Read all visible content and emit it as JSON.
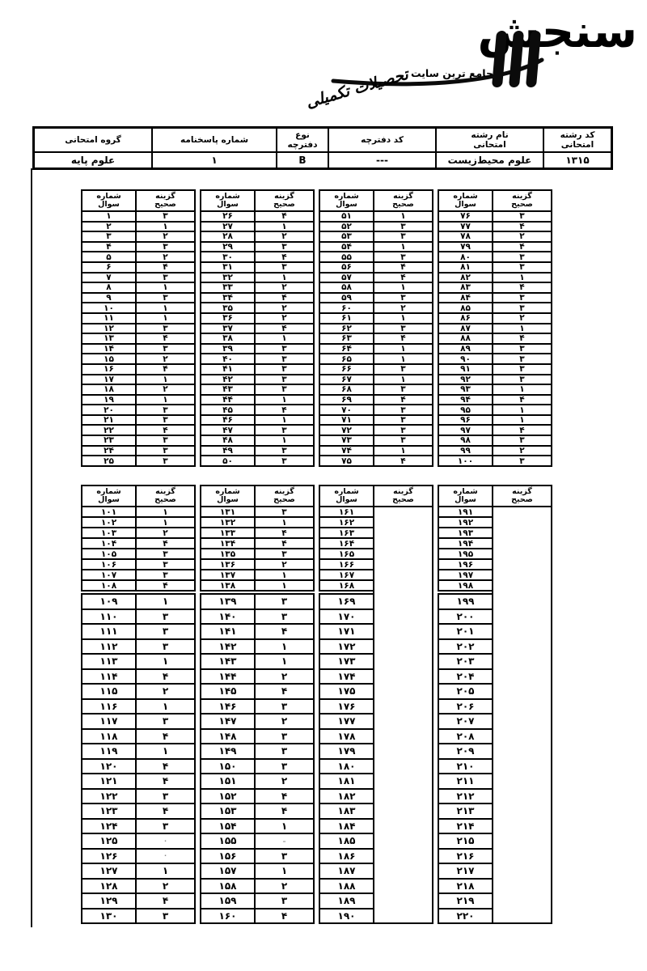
{
  "logo": {
    "brand": "سنجش",
    "mark": "۳",
    "tagline_plain": "جامع ترین سایت",
    "tagline_script": "تحصیلات تکمیلی"
  },
  "info_table": {
    "columns": [
      {
        "label": "کد رشته\nامتحانی",
        "value": "۱۳۱۵"
      },
      {
        "label": "نام رشته\nامتحانی",
        "value": "علوم محیط‌زیست"
      },
      {
        "label": "کد دفترچه",
        "value": "---"
      },
      {
        "label": "نوع\nدفترچه",
        "value": "B"
      },
      {
        "label": "شماره پاسخنامه",
        "value": "۱"
      },
      {
        "label": "گروه امتحانی",
        "value": "علوم پایه"
      }
    ]
  },
  "answer_tables": {
    "question_header": "شماره\nسوال",
    "answer_header": "گزینه\nصحیح",
    "table1": {
      "groups": [
        {
          "rows": [
            [
              "۱",
              "۳"
            ],
            [
              "۲",
              "۱"
            ],
            [
              "۳",
              "۲"
            ],
            [
              "۴",
              "۳"
            ],
            [
              "۵",
              "۲"
            ],
            [
              "۶",
              "۴"
            ],
            [
              "۷",
              "۳"
            ],
            [
              "۸",
              "۱"
            ],
            [
              "۹",
              "۳"
            ],
            [
              "۱۰",
              "۱"
            ],
            [
              "۱۱",
              "۱"
            ],
            [
              "۱۲",
              "۳"
            ],
            [
              "۱۳",
              "۴"
            ],
            [
              "۱۴",
              "۳"
            ],
            [
              "۱۵",
              "۲"
            ],
            [
              "۱۶",
              "۴"
            ],
            [
              "۱۷",
              "۱"
            ],
            [
              "۱۸",
              "۲"
            ],
            [
              "۱۹",
              "۱"
            ],
            [
              "۲۰",
              "۳"
            ],
            [
              "۲۱",
              "۳"
            ],
            [
              "۲۲",
              "۴"
            ],
            [
              "۲۳",
              "۳"
            ],
            [
              "۲۴",
              "۳"
            ],
            [
              "۲۵",
              "۳"
            ]
          ]
        },
        {
          "rows": [
            [
              "۲۶",
              "۴"
            ],
            [
              "۲۷",
              "۱"
            ],
            [
              "۲۸",
              "۲"
            ],
            [
              "۲۹",
              "۳"
            ],
            [
              "۳۰",
              "۴"
            ],
            [
              "۳۱",
              "۳"
            ],
            [
              "۳۲",
              "۱"
            ],
            [
              "۳۳",
              "۲"
            ],
            [
              "۳۴",
              "۴"
            ],
            [
              "۳۵",
              "۲"
            ],
            [
              "۳۶",
              "۲"
            ],
            [
              "۳۷",
              "۴"
            ],
            [
              "۳۸",
              "۱"
            ],
            [
              "۳۹",
              "۳"
            ],
            [
              "۴۰",
              "۳"
            ],
            [
              "۴۱",
              "۳"
            ],
            [
              "۴۲",
              "۳"
            ],
            [
              "۴۳",
              "۳"
            ],
            [
              "۴۴",
              "۱"
            ],
            [
              "۴۵",
              "۴"
            ],
            [
              "۴۶",
              "۱"
            ],
            [
              "۴۷",
              "۳"
            ],
            [
              "۴۸",
              "۱"
            ],
            [
              "۴۹",
              "۳"
            ],
            [
              "۵۰",
              "۳"
            ]
          ]
        },
        {
          "rows": [
            [
              "۵۱",
              "۱"
            ],
            [
              "۵۲",
              "۳"
            ],
            [
              "۵۳",
              "۳"
            ],
            [
              "۵۴",
              "۱"
            ],
            [
              "۵۵",
              "۳"
            ],
            [
              "۵۶",
              "۴"
            ],
            [
              "۵۷",
              "۴"
            ],
            [
              "۵۸",
              "۱"
            ],
            [
              "۵۹",
              "۳"
            ],
            [
              "۶۰",
              "۲"
            ],
            [
              "۶۱",
              "۱"
            ],
            [
              "۶۲",
              "۳"
            ],
            [
              "۶۳",
              "۴"
            ],
            [
              "۶۴",
              "۱"
            ],
            [
              "۶۵",
              "۱"
            ],
            [
              "۶۶",
              "۳"
            ],
            [
              "۶۷",
              "۱"
            ],
            [
              "۶۸",
              "۳"
            ],
            [
              "۶۹",
              "۴"
            ],
            [
              "۷۰",
              "۳"
            ],
            [
              "۷۱",
              "۳"
            ],
            [
              "۷۲",
              "۳"
            ],
            [
              "۷۳",
              "۳"
            ],
            [
              "۷۴",
              "۱"
            ],
            [
              "۷۵",
              "۴"
            ]
          ]
        },
        {
          "rows": [
            [
              "۷۶",
              "۳"
            ],
            [
              "۷۷",
              "۴"
            ],
            [
              "۷۸",
              "۲"
            ],
            [
              "۷۹",
              "۴"
            ],
            [
              "۸۰",
              "۳"
            ],
            [
              "۸۱",
              "۳"
            ],
            [
              "۸۲",
              "۱"
            ],
            [
              "۸۳",
              "۴"
            ],
            [
              "۸۴",
              "۳"
            ],
            [
              "۸۵",
              "۳"
            ],
            [
              "۸۶",
              "۲"
            ],
            [
              "۸۷",
              "۱"
            ],
            [
              "۸۸",
              "۴"
            ],
            [
              "۸۹",
              "۳"
            ],
            [
              "۹۰",
              "۳"
            ],
            [
              "۹۱",
              "۳"
            ],
            [
              "۹۲",
              "۳"
            ],
            [
              "۹۳",
              "۱"
            ],
            [
              "۹۴",
              "۴"
            ],
            [
              "۹۵",
              "۱"
            ],
            [
              "۹۶",
              "۱"
            ],
            [
              "۹۷",
              "۴"
            ],
            [
              "۹۸",
              "۳"
            ],
            [
              "۹۹",
              "۲"
            ],
            [
              "۱۰۰",
              "۳"
            ]
          ]
        }
      ]
    },
    "table2": {
      "section_break_after": 8,
      "groups": [
        {
          "rows": [
            [
              "۱۰۱",
              "۱"
            ],
            [
              "۱۰۲",
              "۱"
            ],
            [
              "۱۰۳",
              "۲"
            ],
            [
              "۱۰۴",
              "۴"
            ],
            [
              "۱۰۵",
              "۳"
            ],
            [
              "۱۰۶",
              "۳"
            ],
            [
              "۱۰۷",
              "۳"
            ],
            [
              "۱۰۸",
              "۴"
            ],
            [
              "۱۰۹",
              "۱"
            ],
            [
              "۱۱۰",
              "۳"
            ],
            [
              "۱۱۱",
              "۳"
            ],
            [
              "۱۱۲",
              "۳"
            ],
            [
              "۱۱۳",
              "۱"
            ],
            [
              "۱۱۴",
              "۴"
            ],
            [
              "۱۱۵",
              "۲"
            ],
            [
              "۱۱۶",
              "۱"
            ],
            [
              "۱۱۷",
              "۳"
            ],
            [
              "۱۱۸",
              "۴"
            ],
            [
              "۱۱۹",
              "۱"
            ],
            [
              "۱۲۰",
              "۴"
            ],
            [
              "۱۲۱",
              "۴"
            ],
            [
              "۱۲۲",
              "۳"
            ],
            [
              "۱۲۳",
              "۴"
            ],
            [
              "۱۲۴",
              "۳"
            ],
            [
              "۱۲۵",
              "·"
            ],
            [
              "۱۲۶",
              "·"
            ],
            [
              "۱۲۷",
              "۱"
            ],
            [
              "۱۲۸",
              "۲"
            ],
            [
              "۱۲۹",
              "۴"
            ],
            [
              "۱۳۰",
              "۳"
            ]
          ]
        },
        {
          "rows": [
            [
              "۱۳۱",
              "۳"
            ],
            [
              "۱۳۲",
              "۱"
            ],
            [
              "۱۳۳",
              "۴"
            ],
            [
              "۱۳۴",
              "۴"
            ],
            [
              "۱۳۵",
              "۳"
            ],
            [
              "۱۳۶",
              "۲"
            ],
            [
              "۱۳۷",
              "۱"
            ],
            [
              "۱۳۸",
              "۱"
            ],
            [
              "۱۳۹",
              "۳"
            ],
            [
              "۱۴۰",
              "۳"
            ],
            [
              "۱۴۱",
              "۴"
            ],
            [
              "۱۴۲",
              "۱"
            ],
            [
              "۱۴۳",
              "۱"
            ],
            [
              "۱۴۴",
              "۲"
            ],
            [
              "۱۴۵",
              "۴"
            ],
            [
              "۱۴۶",
              "۳"
            ],
            [
              "۱۴۷",
              "۲"
            ],
            [
              "۱۴۸",
              "۳"
            ],
            [
              "۱۴۹",
              "۳"
            ],
            [
              "۱۵۰",
              "۳"
            ],
            [
              "۱۵۱",
              "۲"
            ],
            [
              "۱۵۲",
              "۴"
            ],
            [
              "۱۵۳",
              "۴"
            ],
            [
              "۱۵۴",
              "۱"
            ],
            [
              "۱۵۵",
              "–"
            ],
            [
              "۱۵۶",
              "۳"
            ],
            [
              "۱۵۷",
              "۱"
            ],
            [
              "۱۵۸",
              "۲"
            ],
            [
              "۱۵۹",
              "۳"
            ],
            [
              "۱۶۰",
              "۴"
            ]
          ]
        },
        {
          "empty_answers": true,
          "rows": [
            [
              "۱۶۱",
              ""
            ],
            [
              "۱۶۲",
              ""
            ],
            [
              "۱۶۳",
              ""
            ],
            [
              "۱۶۴",
              ""
            ],
            [
              "۱۶۵",
              ""
            ],
            [
              "۱۶۶",
              ""
            ],
            [
              "۱۶۷",
              ""
            ],
            [
              "۱۶۸",
              ""
            ],
            [
              "۱۶۹",
              ""
            ],
            [
              "۱۷۰",
              ""
            ],
            [
              "۱۷۱",
              ""
            ],
            [
              "۱۷۲",
              ""
            ],
            [
              "۱۷۳",
              ""
            ],
            [
              "۱۷۴",
              ""
            ],
            [
              "۱۷۵",
              ""
            ],
            [
              "۱۷۶",
              ""
            ],
            [
              "۱۷۷",
              ""
            ],
            [
              "۱۷۸",
              ""
            ],
            [
              "۱۷۹",
              ""
            ],
            [
              "۱۸۰",
              ""
            ],
            [
              "۱۸۱",
              ""
            ],
            [
              "۱۸۲",
              ""
            ],
            [
              "۱۸۳",
              ""
            ],
            [
              "۱۸۴",
              ""
            ],
            [
              "۱۸۵",
              ""
            ],
            [
              "۱۸۶",
              ""
            ],
            [
              "۱۸۷",
              ""
            ],
            [
              "۱۸۸",
              ""
            ],
            [
              "۱۸۹",
              ""
            ],
            [
              "۱۹۰",
              ""
            ]
          ]
        },
        {
          "empty_answers": true,
          "rows": [
            [
              "۱۹۱",
              ""
            ],
            [
              "۱۹۲",
              ""
            ],
            [
              "۱۹۳",
              ""
            ],
            [
              "۱۹۴",
              ""
            ],
            [
              "۱۹۵",
              ""
            ],
            [
              "۱۹۶",
              ""
            ],
            [
              "۱۹۷",
              ""
            ],
            [
              "۱۹۸",
              ""
            ],
            [
              "۱۹۹",
              ""
            ],
            [
              "۲۰۰",
              ""
            ],
            [
              "۲۰۱",
              ""
            ],
            [
              "۲۰۲",
              ""
            ],
            [
              "۲۰۳",
              ""
            ],
            [
              "۲۰۴",
              ""
            ],
            [
              "۲۰۵",
              ""
            ],
            [
              "۲۰۶",
              ""
            ],
            [
              "۲۰۷",
              ""
            ],
            [
              "۲۰۸",
              ""
            ],
            [
              "۲۰۹",
              ""
            ],
            [
              "۲۱۰",
              ""
            ],
            [
              "۲۱۱",
              ""
            ],
            [
              "۲۱۲",
              ""
            ],
            [
              "۲۱۳",
              ""
            ],
            [
              "۲۱۴",
              ""
            ],
            [
              "۲۱۵",
              ""
            ],
            [
              "۲۱۶",
              ""
            ],
            [
              "۲۱۷",
              ""
            ],
            [
              "۲۱۸",
              ""
            ],
            [
              "۲۱۹",
              ""
            ],
            [
              "۲۲۰",
              ""
            ]
          ]
        }
      ]
    }
  }
}
